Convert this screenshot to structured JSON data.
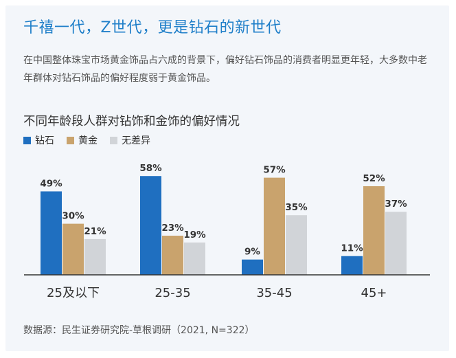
{
  "headline": "千禧一代，Z世代，更是钻石的新世代",
  "intro": "在中国整体珠宝市场黄金饰品占六成的背景下，偏好钻石饰品的消费者明显更年轻，大多数中老年群体对钻石饰品的偏好程度弱于黄金饰品。",
  "source": "数据源：民生证券研究院-草根调研（2021, N=322）",
  "colors": {
    "diamond": "#1f6fc0",
    "gold": "#c9a36d",
    "nodiff": "#d1d4d8",
    "headline": "#1f7fc9"
  },
  "chart_data": {
    "type": "bar",
    "title": "不同年龄段人群对钻饰和金饰的偏好情况",
    "categories": [
      "25及以下",
      "25-35",
      "35-45",
      "45+"
    ],
    "series": [
      {
        "name": "钻石",
        "values": [
          49,
          58,
          9,
          11
        ]
      },
      {
        "name": "黄金",
        "values": [
          30,
          23,
          57,
          52
        ]
      },
      {
        "name": "无差异",
        "values": [
          21,
          19,
          35,
          37
        ]
      }
    ],
    "value_labels": [
      [
        "49%",
        "58%",
        "9%",
        "11%"
      ],
      [
        "30%",
        "23%",
        "57%",
        "52%"
      ],
      [
        "21%",
        "19%",
        "35%",
        "37%"
      ]
    ],
    "ylim": [
      0,
      60
    ],
    "legend_position": "top-left",
    "grid": false,
    "xlabel": "",
    "ylabel": ""
  }
}
